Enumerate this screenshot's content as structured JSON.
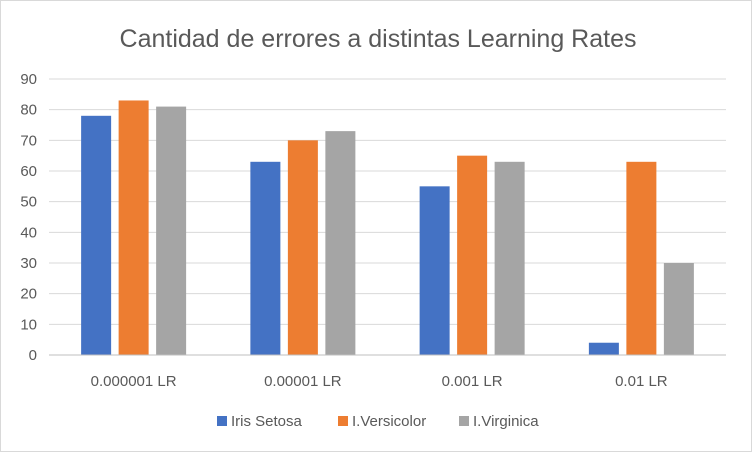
{
  "chart_data": {
    "type": "bar",
    "title": "Cantidad de errores a distintas Learning Rates",
    "xlabel": "",
    "ylabel": "",
    "categories": [
      "0.000001 LR",
      "0.00001 LR",
      "0.001 LR",
      "0.01 LR"
    ],
    "series": [
      {
        "name": "Iris Setosa",
        "color": "#4472c4",
        "values": [
          78,
          63,
          55,
          4
        ]
      },
      {
        "name": "I.Versicolor",
        "color": "#ed7d31",
        "values": [
          83,
          70,
          65,
          63
        ]
      },
      {
        "name": "I.Virginica",
        "color": "#a5a5a5",
        "values": [
          81,
          73,
          63,
          30
        ]
      }
    ],
    "ylim": [
      0,
      90
    ],
    "yticks": [
      0,
      10,
      20,
      30,
      40,
      50,
      60,
      70,
      80,
      90
    ],
    "grid": true,
    "legend": "bottom"
  }
}
